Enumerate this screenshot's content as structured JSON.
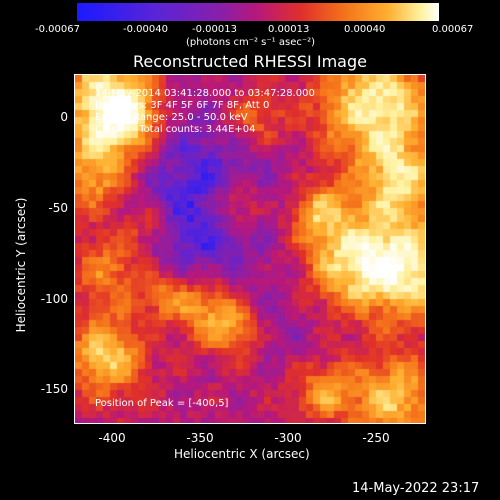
{
  "colorbar": {
    "tick_labels": [
      "-0.00067",
      "-0.00040",
      "-0.00013",
      "0.00013",
      "0.00040",
      "0.00067"
    ],
    "units": "(photons cm⁻² s⁻¹ asec⁻²)"
  },
  "title": "Reconstructed RHESSI Image",
  "overlay": {
    "line1": "14-May-2014 03:41:28.000 to 03:47:28.000",
    "line2": "Detectors: 3F 4F 5F 6F 7F 8F, Att 0",
    "line3": "Energy Range: 25.0 - 50.0 keV",
    "line4": "Clean     Total counts: 3.44E+04",
    "peak": "Position of Peak = [-400,5]"
  },
  "axes": {
    "xlabel": "Heliocentric X (arcsec)",
    "ylabel": "Heliocentric Y (arcsec)",
    "xticks": [
      "-400",
      "-350",
      "-300",
      "-250"
    ],
    "yticks": [
      "0",
      "-50",
      "-100",
      "-150"
    ]
  },
  "timestamp": "14-May-2022 23:17",
  "chart_data": {
    "type": "heatmap",
    "title": "Reconstructed RHESSI Image",
    "xlabel": "Heliocentric X (arcsec)",
    "ylabel": "Heliocentric Y (arcsec)",
    "xlim": [
      -420,
      -225
    ],
    "ylim": [
      -170,
      20
    ],
    "zlim": [
      -0.00067,
      0.00067
    ],
    "colormap": [
      "#1a1aff",
      "#5a24d8",
      "#8a1fa8",
      "#b8187a",
      "#e0302a",
      "#f5731a",
      "#ffb030",
      "#fff2a0",
      "#ffffff"
    ],
    "peak_position": [
      -400,
      5
    ]
  }
}
